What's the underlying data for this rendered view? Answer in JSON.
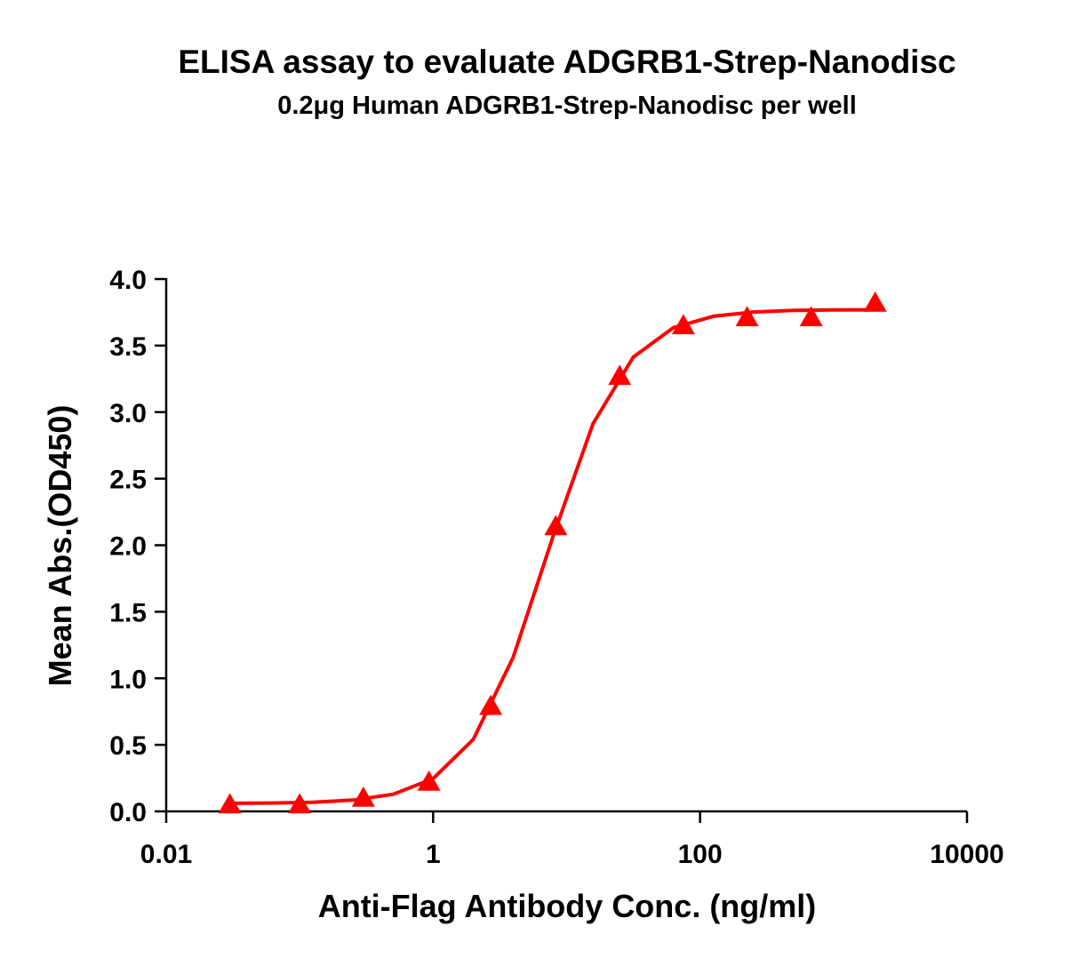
{
  "chart_data": {
    "type": "scatter",
    "title": "ELISA assay to evaluate ADGRB1-Strep-Nanodisc",
    "subtitle": "0.2μg Human ADGRB1-Strep-Nanodisc per well",
    "x_label": "Anti-Flag Antibody Conc. (ng/ml)",
    "y_label": "Mean Abs.(OD450)",
    "x_scale": "log",
    "xlim": [
      0.01,
      10000
    ],
    "xticks": [
      0.01,
      1,
      100,
      10000
    ],
    "ylim": [
      0,
      4
    ],
    "yticks": [
      {
        "value": 0,
        "label": "0.0"
      },
      0.5,
      {
        "value": 1,
        "label": "1.0"
      },
      1.5,
      {
        "value": 2,
        "label": "2.0"
      },
      2.5,
      {
        "value": 3,
        "label": "3.0"
      },
      3.5,
      {
        "value": 4,
        "label": "4.0"
      }
    ],
    "series": [
      {
        "type": "scatter",
        "marker": "triangle",
        "color": "#ff0000",
        "x": [
          0.03,
          0.1,
          0.3,
          0.93,
          2.7,
          8.3,
          25,
          75,
          225,
          680,
          2050
        ],
        "values": [
          0.05,
          0.05,
          0.1,
          0.22,
          0.79,
          2.14,
          3.27,
          3.65,
          3.71,
          3.71,
          3.82
        ]
      },
      {
        "type": "line",
        "color": "#ff0000",
        "x": [
          0.0316,
          0.063,
          0.126,
          0.251,
          0.501,
          1,
          2,
          3.98,
          7.94,
          15.8,
          31.6,
          63.1,
          126,
          251,
          501,
          1000,
          1995
        ],
        "values": [
          0.061,
          0.063,
          0.069,
          0.085,
          0.128,
          0.246,
          0.541,
          1.158,
          2.071,
          2.914,
          3.413,
          3.635,
          3.72,
          3.752,
          3.764,
          3.768,
          3.769
        ]
      }
    ]
  }
}
